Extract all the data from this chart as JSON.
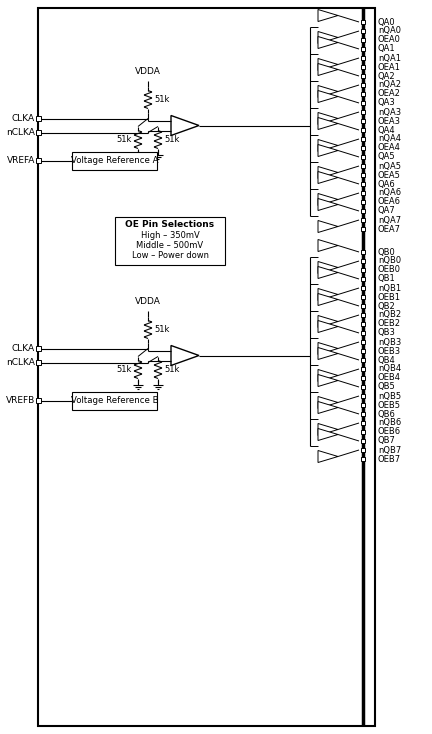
{
  "fig_width": 4.32,
  "fig_height": 7.34,
  "dpi": 100,
  "bg_color": "#ffffff",
  "line_color": "#000000",
  "text_color": "#000000",
  "output_labels_A": [
    [
      "QA0",
      "nQA0",
      "OEA0"
    ],
    [
      "QA1",
      "nQA1",
      "OEA1"
    ],
    [
      "QA2",
      "nQA2",
      "OEA2"
    ],
    [
      "QA3",
      "nQA3",
      "OEA3"
    ],
    [
      "QA4",
      "nQA4",
      "OEA4"
    ],
    [
      "QA5",
      "nQA5",
      "OEA5"
    ],
    [
      "QA6",
      "nQA6",
      "OEA6"
    ],
    [
      "QA7",
      "nQA7",
      "OEA7"
    ]
  ],
  "output_labels_B": [
    [
      "QB0",
      "nQB0",
      "OEB0"
    ],
    [
      "QB1",
      "nQB1",
      "OEB1"
    ],
    [
      "QB2",
      "nQB2",
      "OEB2"
    ],
    [
      "QB3",
      "nQB3",
      "OEB3"
    ],
    [
      "QB4",
      "nQB4",
      "OEB4"
    ],
    [
      "QB5",
      "nQB5",
      "OEB5"
    ],
    [
      "QB6",
      "nQB6",
      "OEB6"
    ],
    [
      "QB7",
      "nQB7",
      "OEB7"
    ]
  ],
  "vdda_label": "VDDA",
  "vref_box_text_A": "Voltage Reference A",
  "vref_box_text_B": "Voltage Reference B",
  "oe_title": "OE Pin Selections",
  "oe_lines": "High – 350mV\nMiddle – 500mV\nLow – Power down"
}
